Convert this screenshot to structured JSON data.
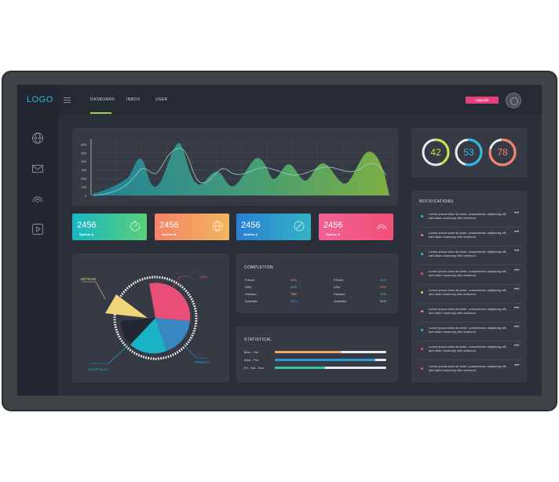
{
  "header": {
    "logo": "LOGO",
    "nav": [
      {
        "label": "DASBOARD",
        "active": true
      },
      {
        "label": "INBOX",
        "active": false
      },
      {
        "label": "USER",
        "active": false
      }
    ],
    "upgrade_label": "Upgrade"
  },
  "sidebar": {
    "icons": [
      "globe-icon",
      "mail-icon",
      "signal-icon",
      "play-icon"
    ]
  },
  "main_chart": {
    "y_ticks": [
      "600",
      "500",
      "400",
      "300",
      "200",
      "100",
      "0"
    ]
  },
  "stat_cards": [
    {
      "value": "2456",
      "label": "System A",
      "icon": "timer-icon",
      "colors": [
        "#18b6c6",
        "#5bd07a"
      ]
    },
    {
      "value": "2456",
      "label": "System B",
      "icon": "globe-icon",
      "colors": [
        "#f4836b",
        "#f2b65c"
      ]
    },
    {
      "value": "2456",
      "label": "System A",
      "icon": "compass-icon",
      "colors": [
        "#2a7fd4",
        "#33b3c6"
      ]
    },
    {
      "value": "2456",
      "label": "System A",
      "icon": "signal-icon",
      "colors": [
        "#f06292",
        "#f0507a"
      ]
    }
  ],
  "gauges": [
    {
      "value": "42",
      "color": "#c8e04b",
      "fraction": 0.42
    },
    {
      "value": "53",
      "color": "#2fb8e6",
      "fraction": 0.53
    },
    {
      "value": "78",
      "color": "#f4836b",
      "fraction": 0.78
    }
  ],
  "pie": {
    "labels": {
      "vietnam": "VIETNAM",
      "usa": "USA",
      "french": "FRENCH",
      "australia": "AUSTRALIA"
    },
    "colors": {
      "vietnam": "#f1d57a",
      "usa": "#e94f79",
      "french": "#3886c2",
      "australia": "#1ab2c5",
      "dark": "#232731"
    }
  },
  "completion": {
    "title": "COMPLETION",
    "left": [
      {
        "name": "French",
        "pct": "40%",
        "color": "#f4836b"
      },
      {
        "name": "USA",
        "pct": "90%",
        "color": "#5bd07a"
      },
      {
        "name": "Vietnam",
        "pct": "70%",
        "color": "#f1d57a"
      },
      {
        "name": "Australia",
        "pct": "50%",
        "color": "#2fb8e6"
      }
    ],
    "right": [
      {
        "name": "French",
        "pct": "40%",
        "color": "#2fb8e6"
      },
      {
        "name": "USA",
        "pct": "90%",
        "color": "#f4836b"
      },
      {
        "name": "Vietnam",
        "pct": "70%",
        "color": "#5bd07a"
      },
      {
        "name": "Australia",
        "pct": "50%",
        "color": "#f1d57a"
      }
    ]
  },
  "statistical": {
    "title": "STATISTICAL",
    "rows": [
      {
        "label": "Mon - Tue",
        "fraction": 0.6,
        "color": "#f2a56a"
      },
      {
        "label": "Wed - Thu",
        "fraction": 0.9,
        "color": "#2f9bd6"
      },
      {
        "label": "Fri - Sat - Sun",
        "fraction": 0.45,
        "color": "#35c4a2"
      }
    ]
  },
  "notifications": {
    "title": "NOTIFICATIONS",
    "more": "•••",
    "items": [
      {
        "text": "Lorem ipsum dolor sit amet, consectetuer adipiscing elit, sed diam nonummy nibh euismod",
        "color": "#2fb8e6"
      },
      {
        "text": "Lorem ipsum dolor sit amet, consectetuer adipiscing elit, sed diam nonummy nibh euismod",
        "color": "#f4836b"
      },
      {
        "text": "Lorem ipsum dolor sit amet, consectetuer adipiscing elit, sed diam nonummy nibh euismod",
        "color": "#2fb8e6"
      },
      {
        "text": "Lorem ipsum dolor sit amet, consectetuer adipiscing elit, sed diam nonummy nibh euismod",
        "color": "#e94f79"
      },
      {
        "text": "Lorem ipsum dolor sit amet, consectetuer adipiscing elit, sed diam nonummy nibh euismod",
        "color": "#c8e04b"
      },
      {
        "text": "Lorem ipsum dolor sit amet, consectetuer adipiscing elit, sed diam nonummy nibh euismod",
        "color": "#f4836b"
      },
      {
        "text": "Lorem ipsum dolor sit amet, consectetuer adipiscing elit, sed diam nonummy nibh euismod",
        "color": "#2fb8e6"
      },
      {
        "text": "Lorem ipsum dolor sit amet, consectetuer adipiscing elit, sed diam nonummy nibh euismod",
        "color": "#e94f79"
      },
      {
        "text": "Lorem ipsum dolor sit amet, consectetuer adipiscing elit, sed diam nonummy nibh euismod",
        "color": "#e94f79"
      }
    ]
  }
}
